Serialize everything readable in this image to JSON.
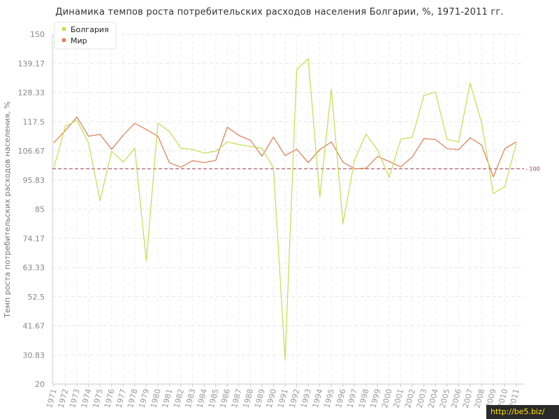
{
  "chart_data": {
    "type": "line",
    "title": "Динамика темпов роста потребительских расходов населения Болгарии, %, 1971-2011 гг.",
    "xlabel": "",
    "ylabel": "Темп роста потребительских расходов населения, %",
    "ylim": [
      20,
      150
    ],
    "yticks": [
      "20",
      "30.83",
      "41.67",
      "52.5",
      "63.33",
      "74.17",
      "85",
      "95.83",
      "106.67",
      "117.5",
      "128.33",
      "139.17",
      "150"
    ],
    "categories": [
      "1971",
      "1972",
      "1973",
      "1974",
      "1975",
      "1976",
      "1977",
      "1978",
      "1979",
      "1980",
      "1981",
      "1982",
      "1983",
      "1984",
      "1985",
      "1986",
      "1987",
      "1988",
      "1989",
      "1990",
      "1991",
      "1992",
      "1993",
      "1994",
      "1995",
      "1996",
      "1997",
      "1998",
      "1999",
      "2000",
      "2001",
      "2002",
      "2003",
      "2004",
      "2005",
      "2006",
      "2007",
      "2008",
      "2009",
      "2010",
      "2011"
    ],
    "series": [
      {
        "name": "Болгария",
        "color": "#c3df4a",
        "values": [
          100.3,
          115.8,
          118.0,
          109.5,
          88.2,
          106.5,
          102.5,
          107.6,
          65.8,
          117.0,
          113.8,
          107.6,
          107.2,
          105.8,
          106.5,
          110.0,
          109.0,
          108.3,
          107.6,
          100.3,
          29.0,
          136.8,
          141.0,
          89.5,
          129.6,
          79.6,
          103.2,
          112.9,
          106.9,
          96.8,
          111.0,
          111.7,
          127.3,
          128.5,
          111.0,
          110.0,
          131.8,
          117.0,
          90.8,
          93.4,
          109.5
        ]
      },
      {
        "name": "Мир",
        "color": "#e07a50",
        "values": [
          109.7,
          114.2,
          119.2,
          112.1,
          112.8,
          107.2,
          112.5,
          116.9,
          114.6,
          112.1,
          102.2,
          100.6,
          103.0,
          102.3,
          103.1,
          115.5,
          112.4,
          110.6,
          104.7,
          111.8,
          104.9,
          107.3,
          102.3,
          107.1,
          110.0,
          102.5,
          100.0,
          100.2,
          104.6,
          102.7,
          100.7,
          104.4,
          111.2,
          110.9,
          107.5,
          107.1,
          111.5,
          108.8,
          97.0,
          107.5,
          110.0
        ]
      }
    ],
    "reference_line": {
      "value": 100,
      "label": "100",
      "color": "#9e3a4e"
    },
    "legend": {
      "position": "top-left"
    },
    "grid": true
  },
  "watermark": "http://be5.biz/"
}
